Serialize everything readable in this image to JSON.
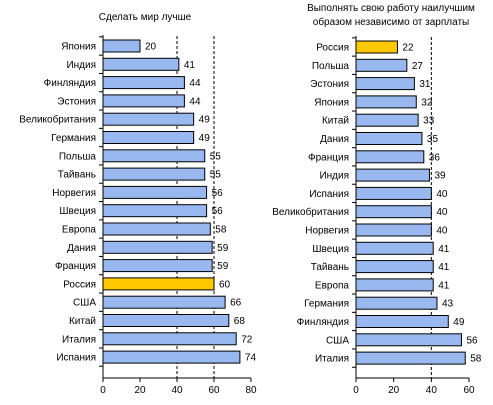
{
  "colors": {
    "bar_fill": "#9AB8F0",
    "highlight_fill": "#FFC800",
    "bar_stroke": "#000000",
    "gridline": "#000000",
    "background": "#FFFFFF"
  },
  "chart_data": [
    {
      "type": "bar",
      "orientation": "horizontal",
      "title": "Сделать мир лучше",
      "categories": [
        "Япония",
        "Индия",
        "Финляндия",
        "Эстония",
        "Великобритания",
        "Германия",
        "Польша",
        "Тайвань",
        "Норвегия",
        "Швеция",
        "Европа",
        "Дания",
        "Франция",
        "Россия",
        "США",
        "Китай",
        "Италия",
        "Испания"
      ],
      "values": [
        20,
        41,
        44,
        44,
        49,
        49,
        55,
        55,
        56,
        56,
        58,
        59,
        59,
        60,
        66,
        68,
        72,
        74
      ],
      "data_labels": [
        "20",
        "41",
        "44",
        "44",
        "49",
        "49",
        "55",
        "55",
        "56",
        "56",
        "58",
        "59",
        "59",
        "60",
        "66",
        "68",
        "72",
        "74"
      ],
      "highlight": "Россия",
      "xlim": [
        0,
        80
      ],
      "xticks": [
        "0",
        "20",
        "40",
        "60",
        "80"
      ],
      "gridlines": "dashed at 40 and 60"
    },
    {
      "type": "bar",
      "orientation": "horizontal",
      "title": "Выполнять свою работу наилучшим образом независимо от зарплаты",
      "title_lines": [
        "Выполнять свою работу наилучшим",
        "образом независимо от зарплаты"
      ],
      "categories": [
        "Россия",
        "Польша",
        "Эстония",
        "Япония",
        "Китай",
        "Дания",
        "Франция",
        "Индия",
        "Испания",
        "Великобритания",
        "Норвегия",
        "Швеция",
        "Тайвань",
        "Европа",
        "Германия",
        "Финляндия",
        "США",
        "Италия"
      ],
      "values": [
        22,
        27,
        31,
        32,
        33,
        35,
        36,
        39,
        40,
        40,
        40,
        41,
        41,
        41,
        43,
        49,
        56,
        58
      ],
      "data_labels": [
        "22",
        "27",
        "31",
        "32",
        "33",
        "35",
        "36",
        "39",
        "40",
        "40",
        "40",
        "41",
        "41",
        "41",
        "43",
        "49",
        "56",
        "58"
      ],
      "highlight": "Россия",
      "xlim": [
        0,
        60
      ],
      "xticks": [
        "0",
        "20",
        "40",
        "60"
      ],
      "gridlines": "dashed at 40"
    }
  ]
}
